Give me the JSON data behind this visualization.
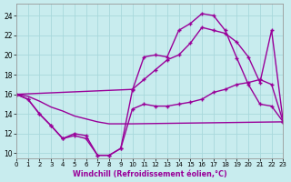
{
  "background_color": "#c8ecee",
  "grid_color": "#a8d8dc",
  "line_color": "#990099",
  "xlim": [
    0,
    23
  ],
  "ylim": [
    9.5,
    25.2
  ],
  "yticks": [
    10,
    12,
    14,
    16,
    18,
    20,
    22,
    24
  ],
  "xticks": [
    0,
    1,
    2,
    3,
    4,
    5,
    6,
    7,
    8,
    9,
    10,
    11,
    12,
    13,
    14,
    15,
    16,
    17,
    18,
    19,
    20,
    21,
    22,
    23
  ],
  "xlabel": "Windchill (Refroidissement éolien,°C)",
  "line1_x": [
    0,
    1,
    2,
    3,
    4,
    5,
    6,
    7,
    8,
    9,
    10,
    23
  ],
  "line1_y": [
    16.0,
    15.8,
    15.3,
    14.7,
    14.3,
    13.8,
    13.5,
    13.2,
    13.0,
    13.0,
    13.0,
    13.2
  ],
  "line2_x": [
    0,
    1,
    2,
    3,
    4,
    5,
    6,
    7,
    8,
    9,
    10,
    11,
    12,
    13,
    14,
    15,
    16,
    17,
    18,
    19,
    20,
    21,
    22,
    23
  ],
  "line2_y": [
    16.0,
    15.5,
    14.0,
    12.8,
    11.5,
    12.0,
    11.8,
    9.8,
    9.8,
    10.5,
    14.5,
    15.0,
    14.8,
    14.8,
    15.0,
    15.2,
    15.5,
    16.2,
    16.5,
    17.0,
    17.2,
    17.5,
    17.0,
    13.2
  ],
  "line3_x": [
    0,
    1,
    2,
    3,
    4,
    5,
    6,
    7,
    8,
    9,
    10,
    11,
    12,
    13,
    14,
    15,
    16,
    17,
    18,
    19,
    20,
    21,
    22,
    23
  ],
  "line3_y": [
    16.0,
    15.5,
    14.0,
    12.8,
    11.5,
    11.8,
    11.5,
    9.8,
    9.8,
    10.5,
    16.4,
    19.8,
    20.0,
    19.8,
    22.5,
    23.2,
    24.2,
    24.0,
    22.5,
    19.7,
    17.0,
    15.0,
    14.8,
    13.2
  ],
  "line4_x": [
    0,
    10,
    11,
    12,
    13,
    14,
    15,
    16,
    17,
    18,
    19,
    20,
    21,
    22,
    23
  ],
  "line4_y": [
    16.0,
    16.5,
    17.5,
    18.5,
    19.5,
    20.0,
    21.2,
    22.8,
    22.5,
    22.2,
    21.3,
    19.8,
    17.2,
    22.5,
    13.2
  ],
  "markersize": 2.5,
  "linewidth": 1.0
}
